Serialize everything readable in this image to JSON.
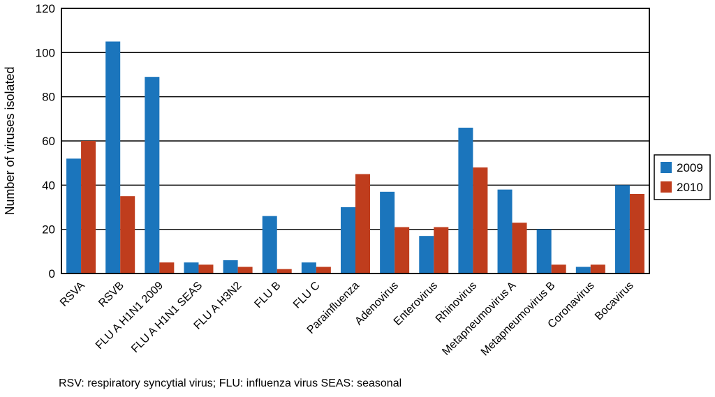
{
  "chart_data": {
    "type": "bar",
    "title": "",
    "xlabel": "",
    "ylabel": "Number of viruses isolated",
    "ylim": [
      0,
      120
    ],
    "yticks": [
      0,
      20,
      40,
      60,
      80,
      100,
      120
    ],
    "grid": true,
    "legend_position": "right-outside",
    "categories": [
      "RSVA",
      "RSVB",
      "FLU A H1N1 2009",
      "FLU A H1N1 SEAS",
      "FLU A H3N2",
      "FLU B",
      "FLU C",
      "Parainfluenza",
      "Adenovirus",
      "Enterovirus",
      "Rhinovirus",
      "Metapneumovirus A",
      "Metapneumovirus B",
      "Coronavirus",
      "Bocavirus"
    ],
    "series": [
      {
        "name": "2009",
        "color": "#1b75bc",
        "values": [
          52,
          105,
          89,
          5,
          6,
          26,
          5,
          30,
          37,
          17,
          66,
          38,
          20,
          3,
          40
        ]
      },
      {
        "name": "2010",
        "color": "#bf3d1d",
        "values": [
          60,
          35,
          5,
          4,
          3,
          2,
          3,
          45,
          21,
          21,
          48,
          23,
          4,
          4,
          36
        ]
      }
    ]
  },
  "footnote": "RSV: respiratory syncytial virus; FLU: influenza virus SEAS: seasonal",
  "colors": {
    "background": "#ffffff",
    "axis": "#000000"
  }
}
